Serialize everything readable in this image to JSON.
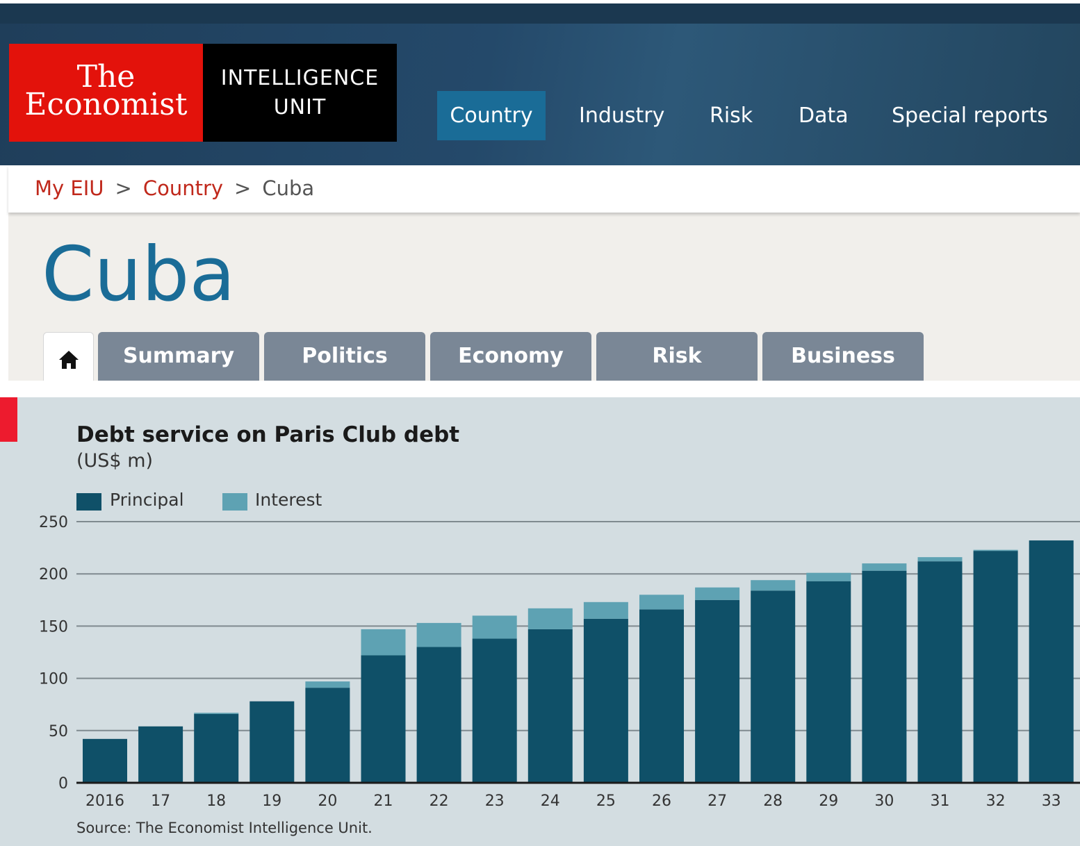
{
  "header": {
    "logo": {
      "line1": "The",
      "line2": "Economist",
      "unit_line1": "INTELLIGENCE",
      "unit_line2": "UNIT"
    },
    "nav": [
      {
        "label": "Country",
        "active": true
      },
      {
        "label": "Industry",
        "active": false
      },
      {
        "label": "Risk",
        "active": false
      },
      {
        "label": "Data",
        "active": false
      },
      {
        "label": "Special reports",
        "active": false
      }
    ]
  },
  "breadcrumb": {
    "items": [
      "My EIU",
      "Country",
      "Cuba"
    ],
    "separator": ">"
  },
  "page": {
    "title": "Cuba",
    "tabs": [
      "Summary",
      "Politics",
      "Economy",
      "Risk",
      "Business"
    ],
    "home_icon": "home-icon"
  },
  "colors": {
    "principal": "#0f5068",
    "interest": "#5ea2b3",
    "nav_active": "#1a6c97",
    "title": "#1a6c97",
    "breadcrumb_link": "#c0281b"
  },
  "chart_data": {
    "type": "bar",
    "stacked": true,
    "title": "Debt service on Paris Club debt",
    "subtitle": "(US$ m)",
    "categories": [
      "2016",
      "17",
      "18",
      "19",
      "20",
      "21",
      "22",
      "23",
      "24",
      "25",
      "26",
      "27",
      "28",
      "29",
      "30",
      "31",
      "32",
      "33"
    ],
    "series": [
      {
        "name": "Principal",
        "values": [
          42,
          54,
          66,
          78,
          91,
          122,
          130,
          138,
          147,
          157,
          166,
          175,
          184,
          193,
          203,
          212,
          222,
          232
        ]
      },
      {
        "name": "Interest",
        "values": [
          0,
          0,
          1,
          0,
          6,
          25,
          23,
          22,
          20,
          16,
          14,
          12,
          10,
          8,
          7,
          4,
          1,
          0
        ]
      }
    ],
    "ylim": [
      0,
      250
    ],
    "yticks": [
      0,
      50,
      100,
      150,
      200,
      250
    ],
    "grid": true,
    "legend_position": "top-left",
    "source": "Source: The Economist Intelligence Unit."
  }
}
